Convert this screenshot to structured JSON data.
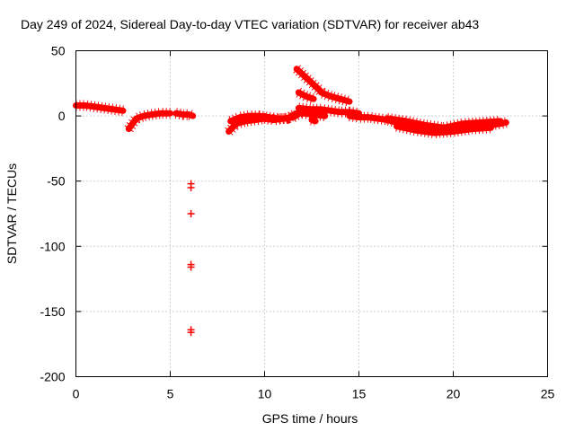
{
  "chart_data": {
    "type": "scatter",
    "title": "Day 249 of 2024, Sidereal Day-to-day VTEC variation (SDTVAR) for receiver ab43",
    "xlabel": "GPS time / hours",
    "ylabel": "SDTVAR / TECUs",
    "xlim": [
      0,
      25
    ],
    "ylim": [
      -200,
      50
    ],
    "xticks": [
      0,
      5,
      10,
      15,
      20,
      25
    ],
    "yticks": [
      -200,
      -150,
      -100,
      -50,
      0,
      50
    ],
    "grid": true,
    "marker_color": "#ff0000",
    "series": [
      {
        "name": "SDTVAR segments",
        "segments": [
          {
            "x": [
              0.0,
              0.5,
              1.0,
              1.5,
              2.0,
              2.5
            ],
            "y": [
              8,
              8,
              7,
              6,
              5,
              4
            ]
          },
          {
            "x": [
              2.8,
              3.2,
              3.6,
              4.0,
              4.5,
              5.0
            ],
            "y": [
              -10,
              -2,
              0,
              1,
              2,
              2
            ]
          },
          {
            "x": [
              5.3,
              5.7,
              6.0,
              6.2
            ],
            "y": [
              2,
              1,
              1,
              0
            ]
          },
          {
            "x": [
              8.1,
              8.5,
              9.0,
              9.5,
              10.0,
              10.5,
              11.0,
              11.5,
              12.0
            ],
            "y": [
              -12,
              -6,
              -4,
              -3,
              -2,
              -3,
              -2,
              -1,
              3
            ]
          },
          {
            "x": [
              8.2,
              8.7,
              9.2,
              9.7,
              10.2,
              10.7,
              11.2,
              11.7
            ],
            "y": [
              -4,
              -1,
              0,
              0,
              -1,
              -2,
              -2,
              2
            ]
          },
          {
            "x": [
              11.7,
              12.0,
              12.3,
              12.6,
              12.9,
              13.0,
              13.5,
              14.0,
              14.5
            ],
            "y": [
              36,
              32,
              28,
              24,
              20,
              18,
              15,
              13,
              11
            ]
          },
          {
            "x": [
              11.8,
              12.2,
              12.6
            ],
            "y": [
              18,
              15,
              13
            ]
          },
          {
            "x": [
              11.8,
              12.5,
              13.0,
              13.5,
              14.0,
              14.5,
              15.0
            ],
            "y": [
              6,
              5,
              5,
              4,
              3,
              3,
              2
            ]
          },
          {
            "x": [
              12.0,
              12.6,
              13.2
            ],
            "y": [
              2,
              1,
              0
            ]
          },
          {
            "x": [
              12.5,
              12.7
            ],
            "y": [
              -3,
              -4
            ]
          },
          {
            "x": [
              14.5,
              15.0,
              15.5,
              16.0,
              16.5,
              17.0,
              17.5,
              18.0,
              18.5,
              19.0,
              19.5,
              20.0,
              20.5,
              21.0,
              21.5,
              22.0,
              22.5,
              22.8
            ],
            "y": [
              0,
              -1,
              -1,
              -2,
              -3,
              -5,
              -6,
              -8,
              -10,
              -11,
              -11,
              -10,
              -8,
              -7,
              -7,
              -7,
              -6,
              -5
            ]
          },
          {
            "x": [
              16.5,
              17.5,
              18.5,
              19.5,
              20.5,
              21.5,
              22.5
            ],
            "y": [
              -2,
              -4,
              -7,
              -9,
              -6,
              -5,
              -4
            ]
          },
          {
            "x": [
              17.0,
              18.0,
              19.0,
              20.0,
              21.0,
              22.0
            ],
            "y": [
              -8,
              -11,
              -13,
              -12,
              -10,
              -9
            ]
          }
        ],
        "isolated_points": [
          {
            "x": 6.1,
            "y": -52
          },
          {
            "x": 6.1,
            "y": -55
          },
          {
            "x": 6.1,
            "y": -75
          },
          {
            "x": 6.1,
            "y": -114
          },
          {
            "x": 6.1,
            "y": -116
          },
          {
            "x": 6.1,
            "y": -164
          },
          {
            "x": 6.1,
            "y": -166
          }
        ]
      }
    ]
  }
}
